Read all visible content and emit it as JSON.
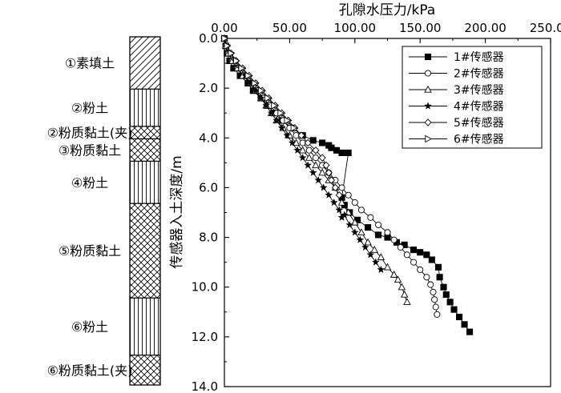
{
  "strata": {
    "layers": [
      {
        "label": "①素填土",
        "top": 0.0,
        "bottom": 2.1,
        "pattern": "diagonal"
      },
      {
        "label": "②粉土",
        "top": 2.1,
        "bottom": 3.6,
        "pattern": "vertical"
      },
      {
        "label": "②粉质黏土(夹)",
        "top": 3.6,
        "bottom": 4.1,
        "pattern": "crosshatch"
      },
      {
        "label": "③粉质黏土",
        "top": 4.1,
        "bottom": 5.0,
        "pattern": "crosshatch"
      },
      {
        "label": "④粉土",
        "top": 5.0,
        "bottom": 6.7,
        "pattern": "vertical"
      },
      {
        "label": "⑤粉质黏土",
        "top": 6.7,
        "bottom": 10.5,
        "pattern": "crosshatch"
      },
      {
        "label": "⑥粉土",
        "top": 10.5,
        "bottom": 12.8,
        "pattern": "vertical"
      },
      {
        "label": "⑥粉质黏土(夹)",
        "top": 12.8,
        "bottom": 14.0,
        "pattern": "crosshatch"
      }
    ]
  },
  "chart_data": {
    "type": "line",
    "xlabel": "孔隙水压力/kPa",
    "ylabel": "传感器入土深度/m",
    "xlim": [
      0,
      250
    ],
    "ylim": [
      14.0,
      0.0
    ],
    "x_axis_position": "top",
    "y_inverted": true,
    "x_ticks": [
      "0.00",
      "50.00",
      "100.00",
      "150.00",
      "200.00",
      "250.00"
    ],
    "y_ticks": [
      "0.0",
      "2.0",
      "4.0",
      "6.0",
      "8.0",
      "10.0",
      "12.0",
      "14.0"
    ],
    "legend_position": "top-right",
    "grid": false,
    "series": [
      {
        "name": "1#传感器",
        "marker": "square-filled",
        "x": [
          0,
          1,
          2,
          4,
          7,
          12,
          18,
          22,
          28,
          33,
          38,
          44,
          52,
          60,
          68,
          75,
          80,
          82,
          86,
          90,
          95,
          90,
          92,
          96,
          102,
          110,
          118,
          125,
          132,
          138,
          145,
          150,
          155,
          159,
          164,
          165,
          168,
          170,
          173,
          176,
          180,
          184,
          188
        ],
        "y": [
          0.0,
          0.3,
          0.6,
          0.9,
          1.2,
          1.5,
          1.8,
          2.1,
          2.4,
          2.7,
          3.0,
          3.3,
          3.6,
          3.9,
          4.1,
          4.2,
          4.3,
          4.4,
          4.5,
          4.6,
          4.6,
          6.4,
          6.7,
          7.0,
          7.3,
          7.6,
          7.9,
          8.0,
          8.2,
          8.3,
          8.5,
          8.6,
          8.7,
          8.9,
          9.2,
          9.6,
          10.0,
          10.3,
          10.6,
          10.9,
          11.2,
          11.5,
          11.8
        ]
      },
      {
        "name": "2#传感器",
        "marker": "circle-open",
        "x": [
          0,
          1,
          3,
          6,
          10,
          15,
          20,
          25,
          30,
          35,
          40,
          45,
          50,
          55,
          60,
          65,
          70,
          75,
          80,
          85,
          90,
          95,
          100,
          105,
          112,
          118,
          125,
          130,
          135,
          140,
          145,
          150,
          155,
          158,
          160,
          161,
          162,
          163
        ],
        "y": [
          0.0,
          0.3,
          0.6,
          0.9,
          1.2,
          1.5,
          1.8,
          2.1,
          2.4,
          2.7,
          3.0,
          3.3,
          3.6,
          3.9,
          4.2,
          4.5,
          4.8,
          5.1,
          5.4,
          5.7,
          6.0,
          6.3,
          6.6,
          6.9,
          7.2,
          7.5,
          7.8,
          8.1,
          8.4,
          8.7,
          9.0,
          9.3,
          9.6,
          9.9,
          10.2,
          10.5,
          10.8,
          11.1
        ]
      },
      {
        "name": "3#传感器",
        "marker": "triangle-up-open",
        "x": [
          0,
          1,
          3,
          6,
          10,
          14,
          20,
          24,
          28,
          32,
          36,
          40,
          45,
          50,
          55,
          60,
          65,
          70,
          75,
          80,
          85,
          90,
          95,
          100,
          105,
          110,
          115,
          120,
          125,
          130,
          133,
          136,
          138,
          140
        ],
        "y": [
          0.0,
          0.3,
          0.6,
          0.9,
          1.2,
          1.5,
          1.8,
          2.1,
          2.4,
          2.7,
          3.0,
          3.3,
          3.6,
          3.9,
          4.2,
          4.5,
          4.8,
          5.1,
          5.4,
          5.7,
          6.0,
          6.6,
          7.0,
          7.4,
          7.8,
          8.2,
          8.5,
          8.8,
          9.2,
          9.5,
          9.7,
          10.0,
          10.3,
          10.6
        ]
      },
      {
        "name": "4#传感器",
        "marker": "star-filled",
        "x": [
          0,
          2,
          5,
          8,
          12,
          16,
          20,
          24,
          28,
          32,
          36,
          40,
          44,
          48,
          52,
          56,
          60,
          64,
          68,
          72,
          76,
          80,
          84,
          88,
          90,
          92,
          96,
          100,
          104,
          108,
          112,
          116,
          120
        ],
        "y": [
          0.0,
          0.3,
          0.6,
          0.9,
          1.2,
          1.5,
          1.8,
          2.1,
          2.4,
          2.7,
          3.0,
          3.3,
          3.6,
          3.9,
          4.2,
          4.5,
          4.8,
          5.1,
          5.4,
          5.7,
          6.0,
          6.3,
          6.6,
          6.9,
          7.2,
          7.1,
          7.5,
          7.8,
          8.1,
          8.4,
          8.7,
          9.0,
          9.3
        ]
      },
      {
        "name": "5#传感器",
        "marker": "diamond-open",
        "x": [
          0,
          2,
          5,
          9,
          14,
          19,
          24,
          29,
          34,
          39,
          44,
          49,
          54,
          59,
          64,
          70,
          75,
          78,
          80,
          82,
          85,
          88
        ],
        "y": [
          0.0,
          0.3,
          0.6,
          0.9,
          1.2,
          1.5,
          1.8,
          2.1,
          2.4,
          2.7,
          3.0,
          3.3,
          3.6,
          3.9,
          4.2,
          4.5,
          4.8,
          5.1,
          5.4,
          5.7,
          6.0,
          6.3
        ]
      },
      {
        "name": "6#传感器",
        "marker": "triangle-right-open",
        "x": [
          0,
          2,
          5,
          9,
          13,
          18,
          23,
          28,
          33,
          38,
          43,
          48,
          53
        ],
        "y": [
          0.0,
          0.3,
          0.6,
          0.9,
          1.2,
          1.5,
          1.8,
          2.1,
          2.4,
          2.7,
          3.0,
          3.3,
          3.6
        ]
      }
    ]
  }
}
